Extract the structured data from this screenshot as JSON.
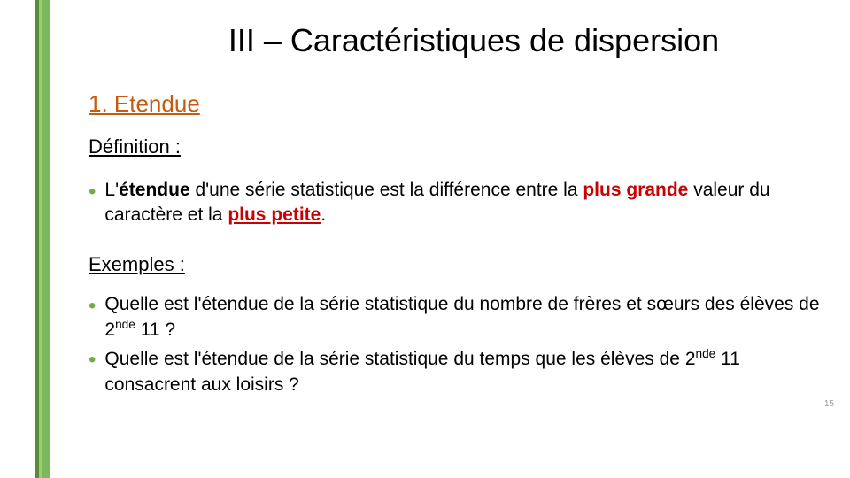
{
  "accent_bar": {
    "stripes": [
      {
        "color": "#5a8a3a",
        "width": 4
      },
      {
        "color": "#9acd6e",
        "width": 4
      },
      {
        "color": "#7cb85c",
        "width": 8
      }
    ]
  },
  "title": "III – Caractéristiques de dispersion",
  "subtitle": {
    "text": "1. Etendue",
    "color": "#c55a11",
    "fontsize": 26
  },
  "definition_label": "Définition :",
  "bullet_color": "#70ad47",
  "definition_item": {
    "pre1": "L'",
    "etendue": "étendue",
    "mid1": " d'une série statistique est la différence entre la ",
    "plus_grande": "plus grande",
    "mid2": " valeur du caractère et la ",
    "plus_petite": "plus petite",
    "end": "."
  },
  "examples_label": "Exemples :",
  "examples": [
    {
      "pre": "Quelle est l'étendue de la série statistique du nombre de frères et sœurs des élèves de 2",
      "sup": "nde",
      "post": " 11 ?"
    },
    {
      "pre": "Quelle est l'étendue de la série statistique du temps que les élèves de 2",
      "sup": "nde",
      "post": " 11 consacrent aux loisirs ?"
    }
  ],
  "page_number": "15",
  "colors": {
    "title": "#000000",
    "text": "#000000",
    "red": "#cc0000",
    "background": "#ffffff"
  },
  "fontsizes": {
    "title": 36,
    "subtitle": 26,
    "label": 22,
    "body": 21
  }
}
